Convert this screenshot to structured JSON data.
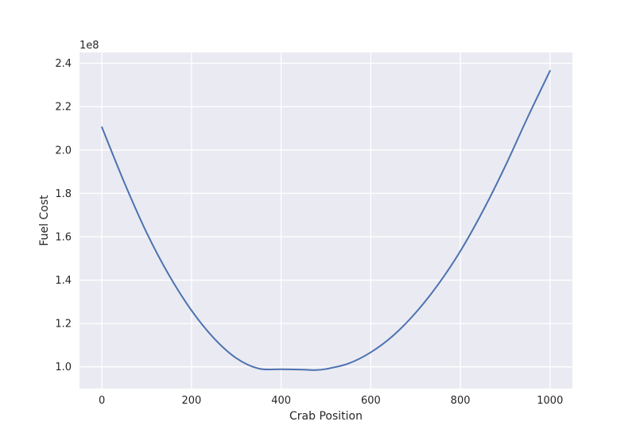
{
  "chart_data": {
    "type": "line",
    "title": "",
    "xlabel": "Crab Position",
    "ylabel": "Fuel Cost",
    "y_offset_label": "1e8",
    "xlim": [
      -50,
      1050
    ],
    "ylim": [
      0.9,
      2.45
    ],
    "x_ticks": [
      0,
      200,
      400,
      600,
      800,
      1000
    ],
    "x_tick_labels": [
      "0",
      "200",
      "400",
      "600",
      "800",
      "1000"
    ],
    "y_ticks": [
      1.0,
      1.2,
      1.4,
      1.6,
      1.8,
      2.0,
      2.2,
      2.4
    ],
    "y_tick_labels": [
      "1.0",
      "1.2",
      "1.4",
      "1.6",
      "1.8",
      "2.0",
      "2.2",
      "2.4"
    ],
    "grid": true,
    "background_color": "#eaeaf2",
    "grid_color": "#ffffff",
    "series": [
      {
        "color": "#4c72b0",
        "x": [
          0,
          50,
          100,
          150,
          200,
          250,
          300,
          350,
          400,
          450,
          475,
          500,
          550,
          600,
          650,
          700,
          750,
          800,
          850,
          900,
          950,
          1000
        ],
        "y": [
          2.105,
          1.85,
          1.618,
          1.422,
          1.26,
          1.132,
          1.04,
          0.992,
          0.989,
          0.987,
          0.985,
          0.99,
          1.015,
          1.067,
          1.144,
          1.249,
          1.379,
          1.534,
          1.718,
          1.925,
          2.15,
          2.365
        ]
      }
    ]
  }
}
